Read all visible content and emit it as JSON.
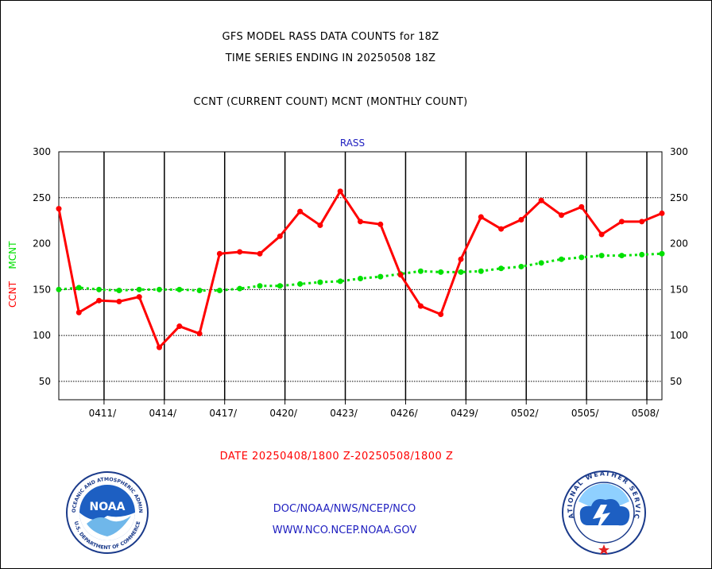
{
  "header": {
    "line1": "GFS MODEL RASS DATA COUNTS for 18Z",
    "line2": "TIME SERIES ENDING IN 20250508 18Z",
    "line3": "CCNT (CURRENT COUNT) MCNT (MONTHLY COUNT)"
  },
  "date_range": "DATE 20250408/1800 Z-20250508/1800 Z",
  "credits": {
    "line1": "DOC/NOAA/NWS/NCEP/NCO",
    "line2": "WWW.NCO.NCEP.NOAA.GOV"
  },
  "logos": {
    "left": "noaa-logo",
    "right": "national-weather-service-logo",
    "left_text": "NOAA",
    "left_ring": "NATIONAL OCEANIC AND ATMOSPHERIC ADMINISTRATION",
    "left_ring_bottom": "U.S. DEPARTMENT OF COMMERCE",
    "right_ring": "NATIONAL WEATHER SERVICE"
  },
  "colors": {
    "ccnt": "#ff0000",
    "mcnt": "#00e000",
    "panel_label": "#2020c0"
  },
  "chart_data": {
    "type": "line",
    "title": "RASS",
    "ylabel_ccnt": "CCNT",
    "ylabel_mcnt": "MCNT",
    "ylim": [
      30,
      300
    ],
    "yticks": [
      50,
      100,
      150,
      200,
      250,
      300
    ],
    "xlim": [
      0,
      30
    ],
    "x_tick_positions": [
      2.25,
      5.25,
      8.25,
      11.25,
      14.25,
      17.25,
      20.25,
      23.25,
      26.25,
      29.25
    ],
    "x_tick_labels": [
      "0411/",
      "0414/",
      "0417/",
      "0420/",
      "0423/",
      "0426/",
      "0429/",
      "0502/",
      "0505/",
      "0508/"
    ],
    "major_grid_x": [
      2.25,
      5.25,
      8.25,
      11.25,
      14.25,
      17.25,
      20.25,
      23.25,
      26.25,
      29.25
    ],
    "dashed_grid_y": [
      50,
      100,
      150,
      250
    ],
    "series": [
      {
        "name": "CCNT",
        "values": [
          238,
          125,
          138,
          137,
          142,
          87,
          110,
          102,
          189,
          191,
          189,
          208,
          235,
          220,
          257,
          224,
          221,
          166,
          132,
          123,
          183,
          229,
          216,
          226,
          247,
          231,
          240,
          210,
          224,
          224,
          233
        ]
      },
      {
        "name": "MCNT",
        "values": [
          150,
          152,
          150,
          149,
          150,
          150,
          150,
          149,
          149,
          151,
          154,
          154,
          156,
          158,
          159,
          162,
          164,
          167,
          170,
          169,
          169,
          170,
          173,
          175,
          179,
          183,
          185,
          187,
          187,
          188,
          189
        ]
      }
    ]
  }
}
